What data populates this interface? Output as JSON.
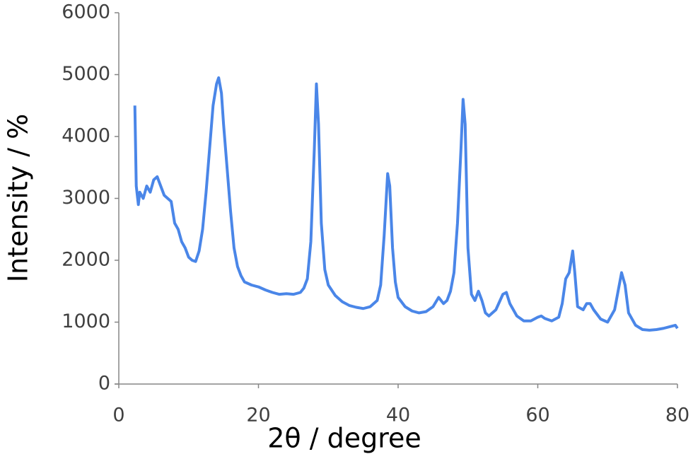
{
  "chart_data": {
    "type": "line",
    "x_label": "2θ / degree",
    "y_label": "Intensity / %",
    "color": "#4a86e8",
    "x": [
      2.3,
      2.5,
      2.8,
      3,
      3.5,
      4,
      4.5,
      5,
      5.5,
      6,
      6.5,
      7,
      7.5,
      8,
      8.5,
      9,
      9.5,
      10,
      10.5,
      11,
      11.5,
      12,
      12.5,
      13,
      13.5,
      14,
      14.3,
      14.7,
      15,
      15.5,
      16,
      16.5,
      17,
      17.5,
      18,
      19,
      20,
      21,
      22,
      23,
      24,
      25,
      26,
      26.5,
      27,
      27.5,
      28,
      28.3,
      28.6,
      29,
      29.5,
      30,
      31,
      32,
      33,
      34,
      35,
      36,
      37,
      37.5,
      38,
      38.5,
      38.8,
      39.2,
      39.6,
      40,
      41,
      42,
      43,
      44,
      45,
      45.8,
      46.5,
      47,
      47.5,
      48,
      48.5,
      49,
      49.3,
      49.6,
      50,
      50.5,
      51,
      51.5,
      52,
      52.5,
      53,
      54,
      55,
      55.5,
      56,
      57,
      58,
      59,
      60,
      60.5,
      61,
      62,
      63,
      63.5,
      64,
      64.5,
      65,
      65.3,
      65.7,
      66.5,
      67,
      67.5,
      68,
      69,
      70,
      71,
      71.5,
      72,
      72.5,
      73,
      74,
      75,
      76,
      77,
      78,
      79,
      79.7,
      80
    ],
    "values": [
      4500,
      3200,
      2900,
      3100,
      3000,
      3200,
      3100,
      3300,
      3350,
      3200,
      3050,
      3000,
      2950,
      2600,
      2500,
      2300,
      2200,
      2050,
      2000,
      1980,
      2150,
      2500,
      3100,
      3800,
      4500,
      4850,
      4950,
      4700,
      4200,
      3500,
      2800,
      2200,
      1900,
      1750,
      1650,
      1600,
      1570,
      1520,
      1480,
      1450,
      1460,
      1450,
      1480,
      1550,
      1700,
      2300,
      3800,
      4850,
      4200,
      2600,
      1850,
      1600,
      1430,
      1330,
      1270,
      1240,
      1220,
      1250,
      1350,
      1600,
      2400,
      3400,
      3200,
      2200,
      1650,
      1400,
      1250,
      1180,
      1150,
      1170,
      1250,
      1400,
      1300,
      1350,
      1500,
      1800,
      2600,
      3800,
      4600,
      4200,
      2200,
      1450,
      1350,
      1500,
      1350,
      1150,
      1100,
      1200,
      1450,
      1480,
      1300,
      1100,
      1020,
      1020,
      1080,
      1100,
      1060,
      1020,
      1080,
      1300,
      1700,
      1800,
      2150,
      1800,
      1250,
      1200,
      1300,
      1300,
      1200,
      1050,
      1000,
      1200,
      1500,
      1800,
      1600,
      1150,
      950,
      880,
      870,
      880,
      900,
      930,
      950,
      900
    ],
    "xlim": [
      0,
      80
    ],
    "xticks": [
      0,
      20,
      40,
      60,
      80
    ],
    "ylim": [
      0,
      6000
    ],
    "yticks": [
      0,
      1000,
      2000,
      3000,
      4000,
      5000,
      6000
    ],
    "grid": false
  }
}
